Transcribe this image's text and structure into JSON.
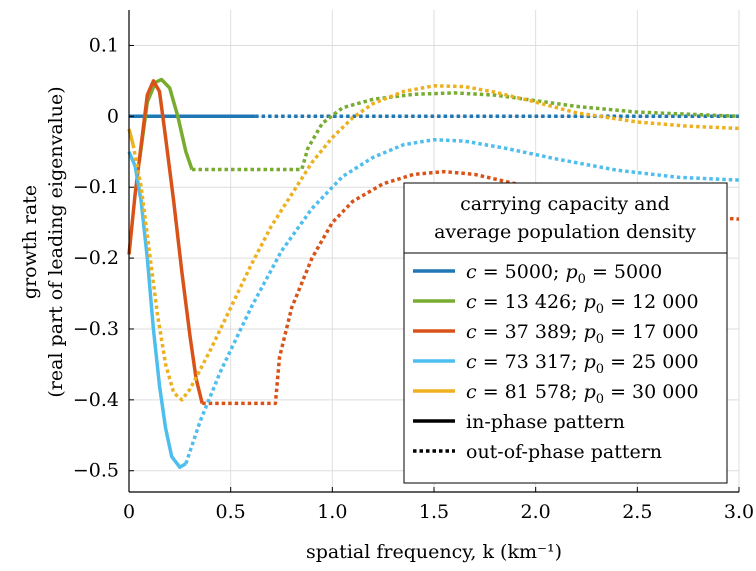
{
  "chart_data": {
    "type": "line",
    "xlabel": "spatial frequency, k (km⁻¹)",
    "ylabel_line1": "growth rate",
    "ylabel_line2": "(real part of leading eigenvalue)",
    "xlim": [
      0,
      3.0
    ],
    "ylim": [
      -0.53,
      0.15
    ],
    "grid": true,
    "legend_position": "lower-right",
    "xticks": [
      {
        "value": 0,
        "label": "0"
      },
      {
        "value": 0.5,
        "label": "0.5"
      },
      {
        "value": 1.0,
        "label": "1.0"
      },
      {
        "value": 1.5,
        "label": "1.5"
      },
      {
        "value": 2.0,
        "label": "2.0"
      },
      {
        "value": 2.5,
        "label": "2.5"
      },
      {
        "value": 3.0,
        "label": "3.0"
      }
    ],
    "yticks": [
      {
        "value": 0.1,
        "label": "0.1"
      },
      {
        "value": 0,
        "label": "0"
      },
      {
        "value": -0.1,
        "label": "−0.1"
      },
      {
        "value": -0.2,
        "label": "−0.2"
      },
      {
        "value": -0.3,
        "label": "−0.3"
      },
      {
        "value": -0.4,
        "label": "−0.4"
      },
      {
        "value": -0.5,
        "label": "−0.5"
      }
    ],
    "legend": {
      "title_line1": "carrying capacity and",
      "title_line2": "average population density",
      "style_items": [
        {
          "label": "in-phase pattern",
          "dashed": false
        },
        {
          "label": "out-of-phase pattern",
          "dashed": true
        }
      ]
    },
    "series": [
      {
        "name": "c = 5000; p0 = 5000",
        "c_value": "5000",
        "p_value": "5000",
        "color": "#1f77b4",
        "in_phase": [
          [
            0,
            0
          ],
          [
            0.1,
            0
          ],
          [
            0.2,
            0
          ],
          [
            0.3,
            0
          ],
          [
            0.4,
            0
          ],
          [
            0.5,
            0
          ],
          [
            0.62,
            0
          ]
        ],
        "out_of_phase": [
          [
            0.62,
            0
          ],
          [
            1.0,
            0
          ],
          [
            1.5,
            0
          ],
          [
            2.0,
            0
          ],
          [
            2.5,
            0
          ],
          [
            3.0,
            0
          ]
        ]
      },
      {
        "name": "c = 13 426; p0 = 12 000",
        "c_value": "13 426",
        "p_value": "12 000",
        "color": "#77ac30",
        "in_phase": [
          [
            0.05,
            -0.065
          ],
          [
            0.09,
            0.02
          ],
          [
            0.13,
            0.048
          ],
          [
            0.16,
            0.052
          ],
          [
            0.2,
            0.04
          ],
          [
            0.24,
            0.0
          ],
          [
            0.28,
            -0.05
          ],
          [
            0.31,
            -0.075
          ]
        ],
        "out_of_phase": [
          [
            0.31,
            -0.075
          ],
          [
            0.5,
            -0.075
          ],
          [
            0.7,
            -0.075
          ],
          [
            0.85,
            -0.075
          ],
          [
            0.88,
            -0.045
          ],
          [
            0.95,
            -0.01
          ],
          [
            1.05,
            0.012
          ],
          [
            1.2,
            0.024
          ],
          [
            1.4,
            0.031
          ],
          [
            1.6,
            0.033
          ],
          [
            1.8,
            0.03
          ],
          [
            2.0,
            0.022
          ],
          [
            2.2,
            0.014
          ],
          [
            2.5,
            0.006
          ],
          [
            3.0,
            0.0
          ]
        ]
      },
      {
        "name": "c = 37 389; p0 = 17 000",
        "c_value": "37 389",
        "p_value": "17 000",
        "color": "#d95319",
        "in_phase": [
          [
            0,
            -0.195
          ],
          [
            0.03,
            -0.11
          ],
          [
            0.06,
            -0.04
          ],
          [
            0.09,
            0.03
          ],
          [
            0.12,
            0.05
          ],
          [
            0.15,
            0.035
          ],
          [
            0.18,
            -0.03
          ],
          [
            0.22,
            -0.12
          ],
          [
            0.26,
            -0.22
          ],
          [
            0.3,
            -0.31
          ],
          [
            0.33,
            -0.37
          ],
          [
            0.36,
            -0.405
          ]
        ],
        "out_of_phase": [
          [
            0.36,
            -0.405
          ],
          [
            0.5,
            -0.405
          ],
          [
            0.72,
            -0.405
          ],
          [
            0.74,
            -0.34
          ],
          [
            0.8,
            -0.27
          ],
          [
            0.9,
            -0.2
          ],
          [
            1.0,
            -0.15
          ],
          [
            1.1,
            -0.12
          ],
          [
            1.25,
            -0.095
          ],
          [
            1.4,
            -0.082
          ],
          [
            1.55,
            -0.078
          ],
          [
            1.7,
            -0.082
          ],
          [
            1.9,
            -0.095
          ],
          [
            2.1,
            -0.11
          ],
          [
            2.4,
            -0.125
          ],
          [
            2.7,
            -0.14
          ],
          [
            3.0,
            -0.145
          ]
        ]
      },
      {
        "name": "c = 73 317; p0 = 25 000",
        "c_value": "73 317",
        "p_value": "25 000",
        "color": "#4dbeee",
        "in_phase": [
          [
            0,
            -0.05
          ],
          [
            0.03,
            -0.07
          ],
          [
            0.06,
            -0.12
          ],
          [
            0.09,
            -0.2
          ],
          [
            0.12,
            -0.3
          ],
          [
            0.15,
            -0.38
          ],
          [
            0.18,
            -0.44
          ],
          [
            0.21,
            -0.48
          ],
          [
            0.25,
            -0.495
          ],
          [
            0.28,
            -0.49
          ]
        ],
        "out_of_phase": [
          [
            0.28,
            -0.49
          ],
          [
            0.35,
            -0.43
          ],
          [
            0.45,
            -0.36
          ],
          [
            0.6,
            -0.27
          ],
          [
            0.75,
            -0.19
          ],
          [
            0.9,
            -0.13
          ],
          [
            1.05,
            -0.085
          ],
          [
            1.2,
            -0.058
          ],
          [
            1.35,
            -0.04
          ],
          [
            1.5,
            -0.033
          ],
          [
            1.65,
            -0.035
          ],
          [
            1.85,
            -0.045
          ],
          [
            2.1,
            -0.06
          ],
          [
            2.4,
            -0.076
          ],
          [
            2.7,
            -0.086
          ],
          [
            3.0,
            -0.09
          ]
        ]
      },
      {
        "name": "c = 81 578; p0 = 30 000",
        "c_value": "81 578",
        "p_value": "30 000",
        "color": "#edb120",
        "in_phase": [
          [
            0,
            -0.018
          ],
          [
            0.02,
            -0.04
          ]
        ],
        "out_of_phase": [
          [
            0.02,
            -0.04
          ],
          [
            0.06,
            -0.1
          ],
          [
            0.1,
            -0.19
          ],
          [
            0.14,
            -0.28
          ],
          [
            0.18,
            -0.35
          ],
          [
            0.22,
            -0.39
          ],
          [
            0.26,
            -0.4
          ],
          [
            0.3,
            -0.385
          ],
          [
            0.4,
            -0.33
          ],
          [
            0.5,
            -0.27
          ],
          [
            0.6,
            -0.21
          ],
          [
            0.7,
            -0.155
          ],
          [
            0.8,
            -0.11
          ],
          [
            0.9,
            -0.065
          ],
          [
            1.0,
            -0.03
          ],
          [
            1.1,
            -0.002
          ],
          [
            1.2,
            0.018
          ],
          [
            1.35,
            0.035
          ],
          [
            1.5,
            0.043
          ],
          [
            1.65,
            0.042
          ],
          [
            1.8,
            0.034
          ],
          [
            2.0,
            0.02
          ],
          [
            2.2,
            0.005
          ],
          [
            2.5,
            -0.008
          ],
          [
            2.75,
            -0.014
          ],
          [
            3.0,
            -0.017
          ]
        ]
      }
    ]
  }
}
